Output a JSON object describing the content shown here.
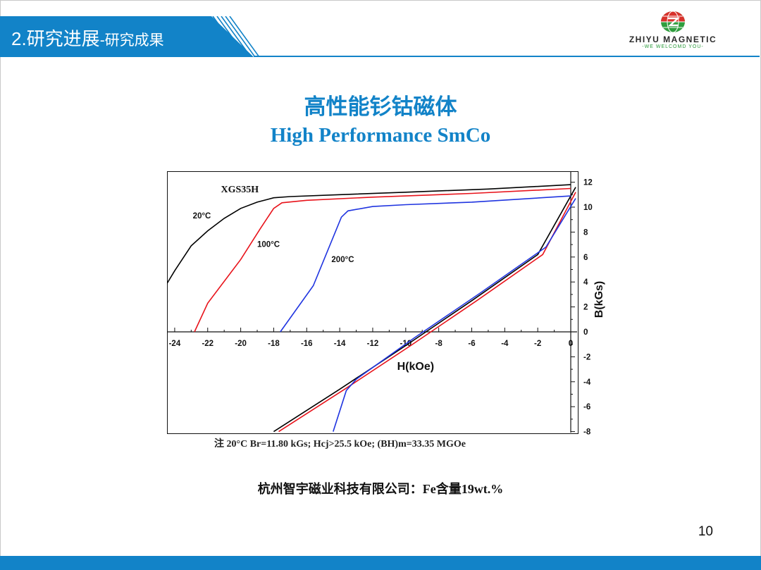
{
  "header": {
    "section_title": "2.研究进展",
    "section_subtitle": "-研究成果",
    "logo_name": "ZHIYU MAGNETIC",
    "logo_slogan": "-WE WELCOMD YOU-",
    "accent_color": "#1283c8"
  },
  "slide": {
    "title_cn": "高性能钐钴磁体",
    "title_en": "High Performance SmCo",
    "note": "注 20°C  Br=11.80 kGs;  Hcj>25.5 kOe;  (BH)m=33.35 MGOe",
    "company_line": "杭州智宇磁业科技有限公司：Fe含量19wt.%",
    "page_number": "10"
  },
  "chart_data": {
    "type": "line",
    "annotation": "XGS35H",
    "xlabel": "H(kOe)",
    "ylabel": "B(kGs)",
    "xlim": [
      -24.5,
      0.3
    ],
    "ylim": [
      -8,
      12.5
    ],
    "x_ticks": [
      -24,
      -22,
      -20,
      -18,
      -16,
      -14,
      -12,
      -10,
      -8,
      -6,
      -4,
      -2,
      0
    ],
    "y_ticks": [
      -8,
      -6,
      -4,
      -2,
      0,
      2,
      4,
      6,
      8,
      10,
      12
    ],
    "grid": false,
    "series": [
      {
        "name": "20°C",
        "color": "#000000",
        "label_at": [
          -22.9,
          9.1
        ],
        "curves": [
          [
            [
              -24.5,
              3.8
            ],
            [
              -24,
              4.9
            ],
            [
              -23,
              6.9
            ],
            [
              -22,
              8.1
            ],
            [
              -21,
              9.1
            ],
            [
              -20,
              9.9
            ],
            [
              -19,
              10.4
            ],
            [
              -18,
              10.75
            ],
            [
              -17,
              10.85
            ],
            [
              -14,
              11.0
            ],
            [
              -10,
              11.2
            ],
            [
              -5,
              11.45
            ],
            [
              0,
              11.8
            ]
          ],
          [
            [
              -18.0,
              -8.0
            ],
            [
              -14.0,
              -4.6
            ],
            [
              -10.0,
              -1.1
            ],
            [
              -6.0,
              2.5
            ],
            [
              -2.0,
              6.2
            ],
            [
              0.3,
              11.6
            ]
          ]
        ]
      },
      {
        "name": "100°C",
        "color": "#e8131b",
        "label_at": [
          -19.0,
          6.8
        ],
        "curves": [
          [
            [
              -22.8,
              0
            ],
            [
              -22,
              2.3
            ],
            [
              -20,
              5.8
            ],
            [
              -18.8,
              8.3
            ],
            [
              -18,
              9.9
            ],
            [
              -17.5,
              10.35
            ],
            [
              -16,
              10.55
            ],
            [
              -12,
              10.8
            ],
            [
              -6,
              11.1
            ],
            [
              0,
              11.5
            ]
          ],
          [
            [
              -17.7,
              -8.0
            ],
            [
              -13.7,
              -4.6
            ],
            [
              -9.7,
              -1.1
            ],
            [
              -5.7,
              2.5
            ],
            [
              -1.7,
              6.2
            ],
            [
              0.3,
              11.2
            ]
          ]
        ]
      },
      {
        "name": "200°C",
        "color": "#1f34e0",
        "label_at": [
          -14.5,
          5.6
        ],
        "curves": [
          [
            [
              -17.6,
              0
            ],
            [
              -15.6,
              3.7
            ],
            [
              -13.9,
              9.2
            ],
            [
              -13.5,
              9.7
            ],
            [
              -12,
              10.05
            ],
            [
              -10,
              10.2
            ],
            [
              -6,
              10.4
            ],
            [
              0,
              10.9
            ]
          ],
          [
            [
              -14.4,
              -8.0
            ],
            [
              -13.6,
              -4.7
            ],
            [
              -13,
              -3.8
            ],
            [
              -9.5,
              -0.5
            ],
            [
              -5.5,
              3.1
            ],
            [
              -1.5,
              6.8
            ],
            [
              0.3,
              10.7
            ]
          ]
        ]
      }
    ]
  }
}
